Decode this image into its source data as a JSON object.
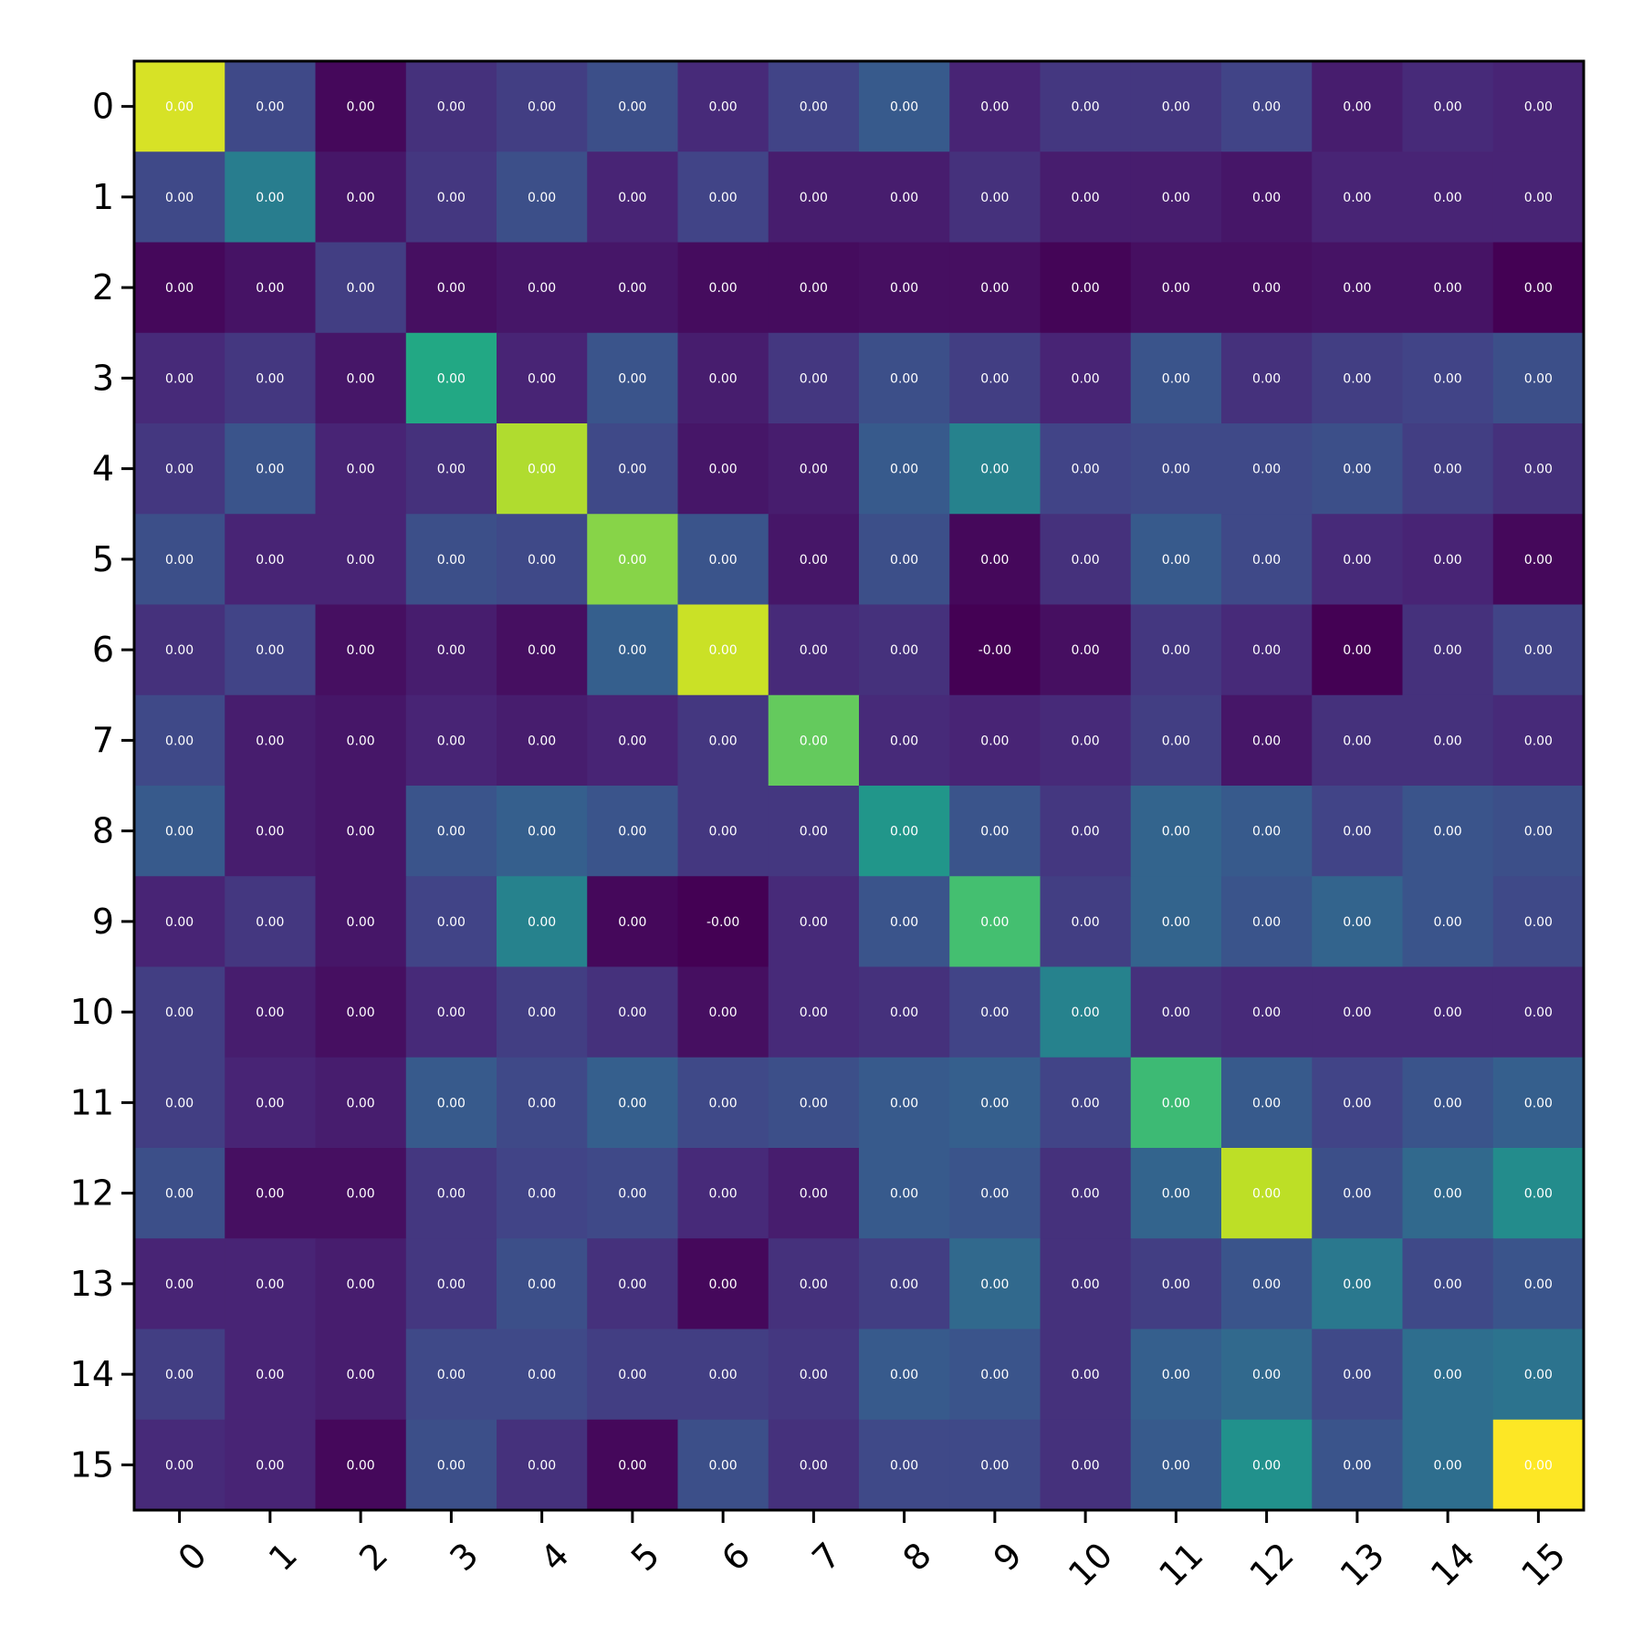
{
  "chart_data": {
    "type": "heatmap",
    "title": "",
    "xlabel": "",
    "ylabel": "",
    "colormap": "viridis",
    "x_categories": [
      "0",
      "1",
      "2",
      "3",
      "4",
      "5",
      "6",
      "7",
      "8",
      "9",
      "10",
      "11",
      "12",
      "13",
      "14",
      "15"
    ],
    "y_categories": [
      "0",
      "1",
      "2",
      "3",
      "4",
      "5",
      "6",
      "7",
      "8",
      "9",
      "10",
      "11",
      "12",
      "13",
      "14",
      "15"
    ],
    "value_range": [
      0,
      1
    ],
    "intensity": [
      [
        0.94,
        0.22,
        0.02,
        0.14,
        0.18,
        0.24,
        0.12,
        0.2,
        0.28,
        0.1,
        0.16,
        0.16,
        0.2,
        0.08,
        0.12,
        0.1
      ],
      [
        0.22,
        0.42,
        0.06,
        0.16,
        0.24,
        0.1,
        0.2,
        0.08,
        0.08,
        0.14,
        0.08,
        0.08,
        0.06,
        0.1,
        0.1,
        0.1
      ],
      [
        0.02,
        0.05,
        0.18,
        0.04,
        0.06,
        0.06,
        0.03,
        0.03,
        0.04,
        0.04,
        0.01,
        0.04,
        0.04,
        0.05,
        0.05,
        0.0
      ],
      [
        0.12,
        0.16,
        0.06,
        0.6,
        0.1,
        0.26,
        0.08,
        0.16,
        0.24,
        0.18,
        0.1,
        0.26,
        0.14,
        0.18,
        0.2,
        0.24
      ],
      [
        0.16,
        0.26,
        0.1,
        0.14,
        0.88,
        0.22,
        0.06,
        0.08,
        0.28,
        0.44,
        0.2,
        0.22,
        0.22,
        0.24,
        0.18,
        0.14
      ],
      [
        0.24,
        0.1,
        0.1,
        0.24,
        0.22,
        0.82,
        0.26,
        0.06,
        0.24,
        0.02,
        0.14,
        0.28,
        0.22,
        0.12,
        0.1,
        0.02
      ],
      [
        0.14,
        0.2,
        0.04,
        0.08,
        0.04,
        0.3,
        0.92,
        0.12,
        0.14,
        0.0,
        0.04,
        0.16,
        0.12,
        0.0,
        0.14,
        0.2
      ],
      [
        0.22,
        0.08,
        0.06,
        0.1,
        0.08,
        0.1,
        0.16,
        0.76,
        0.12,
        0.1,
        0.12,
        0.18,
        0.06,
        0.14,
        0.14,
        0.12
      ],
      [
        0.28,
        0.08,
        0.06,
        0.26,
        0.3,
        0.26,
        0.16,
        0.16,
        0.52,
        0.26,
        0.16,
        0.32,
        0.28,
        0.2,
        0.26,
        0.24
      ],
      [
        0.1,
        0.16,
        0.06,
        0.2,
        0.44,
        0.02,
        0.0,
        0.12,
        0.26,
        0.7,
        0.18,
        0.32,
        0.26,
        0.32,
        0.26,
        0.22
      ],
      [
        0.18,
        0.08,
        0.04,
        0.12,
        0.18,
        0.14,
        0.04,
        0.12,
        0.14,
        0.2,
        0.44,
        0.14,
        0.12,
        0.12,
        0.12,
        0.12
      ],
      [
        0.18,
        0.1,
        0.08,
        0.28,
        0.22,
        0.3,
        0.22,
        0.24,
        0.28,
        0.3,
        0.2,
        0.68,
        0.28,
        0.2,
        0.26,
        0.3
      ],
      [
        0.24,
        0.04,
        0.04,
        0.16,
        0.2,
        0.22,
        0.12,
        0.08,
        0.28,
        0.26,
        0.14,
        0.32,
        0.9,
        0.24,
        0.34,
        0.48
      ],
      [
        0.1,
        0.1,
        0.08,
        0.16,
        0.24,
        0.14,
        0.02,
        0.14,
        0.18,
        0.34,
        0.14,
        0.18,
        0.26,
        0.4,
        0.22,
        0.26
      ],
      [
        0.18,
        0.1,
        0.08,
        0.22,
        0.22,
        0.18,
        0.18,
        0.16,
        0.28,
        0.26,
        0.14,
        0.3,
        0.34,
        0.22,
        0.36,
        0.38
      ],
      [
        0.12,
        0.1,
        0.02,
        0.24,
        0.14,
        0.02,
        0.24,
        0.14,
        0.22,
        0.22,
        0.14,
        0.28,
        0.5,
        0.26,
        0.36,
        1.0
      ]
    ],
    "labels": [
      [
        "0.00",
        "0.00",
        "0.00",
        "0.00",
        "0.00",
        "0.00",
        "0.00",
        "0.00",
        "0.00",
        "0.00",
        "0.00",
        "0.00",
        "0.00",
        "0.00",
        "0.00",
        "0.00"
      ],
      [
        "0.00",
        "0.00",
        "0.00",
        "0.00",
        "0.00",
        "0.00",
        "0.00",
        "0.00",
        "0.00",
        "0.00",
        "0.00",
        "0.00",
        "0.00",
        "0.00",
        "0.00",
        "0.00"
      ],
      [
        "0.00",
        "0.00",
        "0.00",
        "0.00",
        "0.00",
        "0.00",
        "0.00",
        "0.00",
        "0.00",
        "0.00",
        "0.00",
        "0.00",
        "0.00",
        "0.00",
        "0.00",
        "0.00"
      ],
      [
        "0.00",
        "0.00",
        "0.00",
        "0.00",
        "0.00",
        "0.00",
        "0.00",
        "0.00",
        "0.00",
        "0.00",
        "0.00",
        "0.00",
        "0.00",
        "0.00",
        "0.00",
        "0.00"
      ],
      [
        "0.00",
        "0.00",
        "0.00",
        "0.00",
        "0.00",
        "0.00",
        "0.00",
        "0.00",
        "0.00",
        "0.00",
        "0.00",
        "0.00",
        "0.00",
        "0.00",
        "0.00",
        "0.00"
      ],
      [
        "0.00",
        "0.00",
        "0.00",
        "0.00",
        "0.00",
        "0.00",
        "0.00",
        "0.00",
        "0.00",
        "0.00",
        "0.00",
        "0.00",
        "0.00",
        "0.00",
        "0.00",
        "0.00"
      ],
      [
        "0.00",
        "0.00",
        "0.00",
        "0.00",
        "0.00",
        "0.00",
        "0.00",
        "0.00",
        "0.00",
        "-0.00",
        "0.00",
        "0.00",
        "0.00",
        "0.00",
        "0.00",
        "0.00"
      ],
      [
        "0.00",
        "0.00",
        "0.00",
        "0.00",
        "0.00",
        "0.00",
        "0.00",
        "0.00",
        "0.00",
        "0.00",
        "0.00",
        "0.00",
        "0.00",
        "0.00",
        "0.00",
        "0.00"
      ],
      [
        "0.00",
        "0.00",
        "0.00",
        "0.00",
        "0.00",
        "0.00",
        "0.00",
        "0.00",
        "0.00",
        "0.00",
        "0.00",
        "0.00",
        "0.00",
        "0.00",
        "0.00",
        "0.00"
      ],
      [
        "0.00",
        "0.00",
        "0.00",
        "0.00",
        "0.00",
        "0.00",
        "-0.00",
        "0.00",
        "0.00",
        "0.00",
        "0.00",
        "0.00",
        "0.00",
        "0.00",
        "0.00",
        "0.00"
      ],
      [
        "0.00",
        "0.00",
        "0.00",
        "0.00",
        "0.00",
        "0.00",
        "0.00",
        "0.00",
        "0.00",
        "0.00",
        "0.00",
        "0.00",
        "0.00",
        "0.00",
        "0.00",
        "0.00"
      ],
      [
        "0.00",
        "0.00",
        "0.00",
        "0.00",
        "0.00",
        "0.00",
        "0.00",
        "0.00",
        "0.00",
        "0.00",
        "0.00",
        "0.00",
        "0.00",
        "0.00",
        "0.00",
        "0.00"
      ],
      [
        "0.00",
        "0.00",
        "0.00",
        "0.00",
        "0.00",
        "0.00",
        "0.00",
        "0.00",
        "0.00",
        "0.00",
        "0.00",
        "0.00",
        "0.00",
        "0.00",
        "0.00",
        "0.00"
      ],
      [
        "0.00",
        "0.00",
        "0.00",
        "0.00",
        "0.00",
        "0.00",
        "0.00",
        "0.00",
        "0.00",
        "0.00",
        "0.00",
        "0.00",
        "0.00",
        "0.00",
        "0.00",
        "0.00"
      ],
      [
        "0.00",
        "0.00",
        "0.00",
        "0.00",
        "0.00",
        "0.00",
        "0.00",
        "0.00",
        "0.00",
        "0.00",
        "0.00",
        "0.00",
        "0.00",
        "0.00",
        "0.00",
        "0.00"
      ],
      [
        "0.00",
        "0.00",
        "0.00",
        "0.00",
        "0.00",
        "0.00",
        "0.00",
        "0.00",
        "0.00",
        "0.00",
        "0.00",
        "0.00",
        "0.00",
        "0.00",
        "0.00",
        "0.00"
      ]
    ],
    "grid": false,
    "legend": "none"
  }
}
